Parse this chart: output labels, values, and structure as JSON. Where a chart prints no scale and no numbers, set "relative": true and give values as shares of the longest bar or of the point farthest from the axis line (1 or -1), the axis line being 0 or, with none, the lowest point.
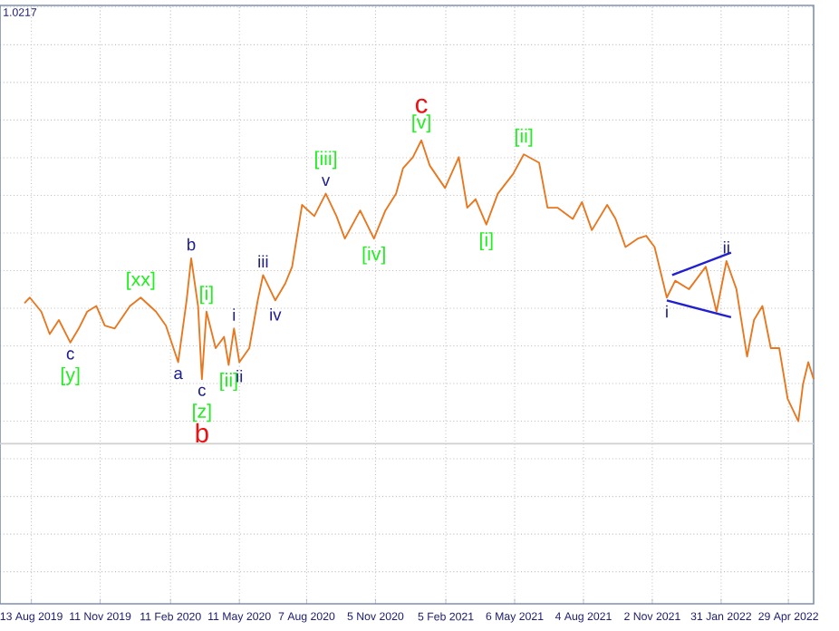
{
  "chart_data": {
    "type": "line",
    "relative": true,
    "grid": true,
    "tick_labels": "x",
    "line_style": "solid",
    "xlim": [
      "2019-07-03",
      "2022-06-01"
    ],
    "xticks": [
      {
        "value": "2019-08-13",
        "label": "13 Aug 2019"
      },
      {
        "value": "2019-11-11",
        "label": "11 Nov 2019"
      },
      {
        "value": "2020-02-11",
        "label": "11 Feb 2020"
      },
      {
        "value": "2020-05-11",
        "label": "11 May 2020"
      },
      {
        "value": "2020-08-07",
        "label": "7 Aug 2020"
      },
      {
        "value": "2020-11-05",
        "label": "5 Nov 2020"
      },
      {
        "value": "2021-02-05",
        "label": "5 Feb 2021"
      },
      {
        "value": "2021-05-06",
        "label": "6 May 2021"
      },
      {
        "value": "2021-08-04",
        "label": "4 Aug 2021"
      },
      {
        "value": "2021-11-02",
        "label": "2 Nov 2021"
      },
      {
        "value": "2022-01-31",
        "label": "31 Jan 2022"
      },
      {
        "value": "2022-04-29",
        "label": "29 Apr 2022"
      }
    ],
    "series": [
      {
        "color": "#e8771f",
        "x": [
          "2019-08-04",
          "2019-08-11",
          "2019-08-26",
          "2019-09-06",
          "2019-09-18",
          "2019-10-03",
          "2019-10-14",
          "2019-10-25",
          "2019-11-06",
          "2019-11-17",
          "2019-11-30",
          "2019-12-20",
          "2020-01-03",
          "2020-01-23",
          "2020-02-05",
          "2020-02-21",
          "2020-03-03",
          "2020-03-09",
          "2020-03-18",
          "2020-03-23",
          "2020-03-29",
          "2020-04-10",
          "2020-04-21",
          "2020-04-27",
          "2020-05-04",
          "2020-05-11",
          "2020-05-24",
          "2020-06-04",
          "2020-06-11",
          "2020-06-27",
          "2020-07-10",
          "2020-07-19",
          "2020-08-01",
          "2020-08-17",
          "2020-09-01",
          "2020-09-15",
          "2020-09-26",
          "2020-10-16",
          "2020-11-03",
          "2020-11-18",
          "2020-12-02",
          "2020-12-11",
          "2020-12-24",
          "2021-01-04",
          "2021-01-15",
          "2021-02-04",
          "2021-02-22",
          "2021-03-05",
          "2021-03-16",
          "2021-03-30",
          "2021-04-14",
          "2021-05-04",
          "2021-05-18",
          "2021-06-07",
          "2021-06-18",
          "2021-07-01",
          "2021-07-21",
          "2021-08-02",
          "2021-08-15",
          "2021-09-04",
          "2021-09-15",
          "2021-09-28",
          "2021-10-14",
          "2021-10-25",
          "2021-11-05",
          "2021-11-21",
          "2021-12-02",
          "2021-12-20",
          "2022-01-11",
          "2022-01-25",
          "2022-02-07",
          "2022-02-20",
          "2022-03-06",
          "2022-03-15",
          "2022-03-26",
          "2022-04-06",
          "2022-04-17",
          "2022-04-28",
          "2022-05-12",
          "2022-05-18",
          "2022-05-25",
          "2022-06-01"
        ],
        "values": [
          0.42,
          0.44,
          0.39,
          0.31,
          0.36,
          0.28,
          0.33,
          0.39,
          0.41,
          0.34,
          0.33,
          0.41,
          0.44,
          0.39,
          0.34,
          0.21,
          0.43,
          0.58,
          0.41,
          0.15,
          0.39,
          0.26,
          0.3,
          0.2,
          0.33,
          0.21,
          0.26,
          0.43,
          0.52,
          0.43,
          0.49,
          0.55,
          0.77,
          0.73,
          0.81,
          0.73,
          0.65,
          0.75,
          0.65,
          0.75,
          0.81,
          0.9,
          0.94,
          1,
          0.91,
          0.83,
          0.94,
          0.76,
          0.79,
          0.7,
          0.81,
          0.88,
          0.95,
          0.92,
          0.76,
          0.76,
          0.72,
          0.78,
          0.68,
          0.77,
          0.72,
          0.62,
          0.65,
          0.66,
          0.62,
          0.44,
          0.5,
          0.47,
          0.55,
          0.39,
          0.57,
          0.47,
          0.23,
          0.36,
          0.41,
          0.26,
          0.26,
          0.08,
          0,
          0.13,
          0.21,
          0.15
        ]
      },
      {
        "type": "line",
        "color": "#2020d0",
        "x": [
          "2021-11-28",
          "2022-02-13"
        ],
        "values": [
          0.52,
          0.6
        ]
      },
      {
        "type": "line",
        "color": "#2020d0",
        "x": [
          "2021-11-21",
          "2022-02-13"
        ],
        "values": [
          0.43,
          0.37
        ]
      }
    ],
    "ref_lines": [
      {
        "axis": "y",
        "value": -0.08,
        "color": "#d0d0d0"
      }
    ],
    "annotations": [
      "1.0217",
      {
        "text": "c",
        "x": "2019-10-03",
        "y": 0.28
      },
      {
        "text": "[y]",
        "x": "2019-10-03",
        "y": 0.28
      },
      {
        "text": "[xx]",
        "x": "2020-01-03",
        "y": 0.44
      },
      {
        "text": "a",
        "x": "2020-02-21",
        "y": 0.21
      },
      {
        "text": "b",
        "x": "2020-03-09",
        "y": 0.58
      },
      {
        "text": "c",
        "x": "2020-03-23",
        "y": 0.15
      },
      {
        "text": "[z]",
        "x": "2020-03-23",
        "y": 0.15
      },
      {
        "text": "b",
        "x": "2020-03-23",
        "y": 0.15
      },
      {
        "text": "[i]",
        "x": "2020-03-29",
        "y": 0.39
      },
      {
        "text": "[ii]",
        "x": "2020-04-27",
        "y": 0.2
      },
      {
        "text": "i",
        "x": "2020-05-04",
        "y": 0.33
      },
      {
        "text": "ii",
        "x": "2020-05-11",
        "y": 0.21
      },
      {
        "text": "iii",
        "x": "2020-06-11",
        "y": 0.52
      },
      {
        "text": "iv",
        "x": "2020-06-27",
        "y": 0.43
      },
      {
        "text": "v",
        "x": "2020-09-01",
        "y": 0.81
      },
      {
        "text": "[iii]",
        "x": "2020-09-01",
        "y": 0.81
      },
      {
        "text": "[iv]",
        "x": "2020-11-03",
        "y": 0.65
      },
      {
        "text": "[v]",
        "x": "2021-01-04",
        "y": 1
      },
      {
        "text": "c",
        "x": "2021-01-04",
        "y": 1
      },
      {
        "text": "[i]",
        "x": "2021-03-30",
        "y": 0.7
      },
      {
        "text": "[ii]",
        "x": "2021-05-18",
        "y": 0.95
      },
      {
        "text": "i",
        "x": "2021-11-21",
        "y": 0.44
      },
      {
        "text": "ii",
        "x": "2022-02-07",
        "y": 0.57
      }
    ]
  }
}
